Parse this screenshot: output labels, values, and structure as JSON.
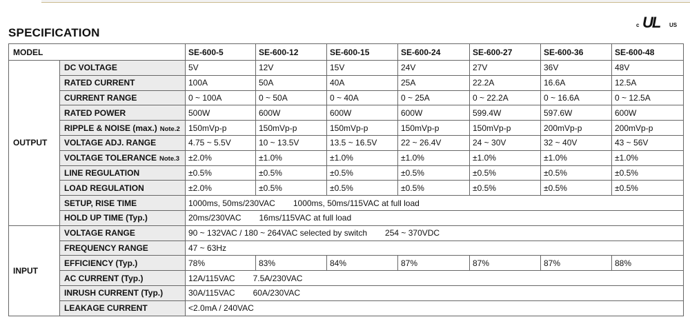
{
  "header": {
    "title": "SPECIFICATION",
    "cert_mark": {
      "prefix": "c",
      "symbol": "UL",
      "suffix": "us"
    }
  },
  "table": {
    "model_label": "MODEL",
    "models": [
      "SE-600-5",
      "SE-600-12",
      "SE-600-15",
      "SE-600-24",
      "SE-600-27",
      "SE-600-36",
      "SE-600-48"
    ],
    "sections": [
      {
        "name": "OUTPUT",
        "rows": [
          {
            "label": "DC VOLTAGE",
            "values": [
              "5V",
              "12V",
              "15V",
              "24V",
              "27V",
              "36V",
              "48V"
            ]
          },
          {
            "label": "RATED CURRENT",
            "values": [
              "100A",
              "50A",
              "40A",
              "25A",
              "22.2A",
              "16.6A",
              "12.5A"
            ]
          },
          {
            "label": "CURRENT RANGE",
            "values": [
              "0 ~ 100A",
              "0 ~ 50A",
              "0 ~ 40A",
              "0 ~ 25A",
              "0 ~ 22.2A",
              "0 ~ 16.6A",
              "0 ~ 12.5A"
            ]
          },
          {
            "label": "RATED POWER",
            "values": [
              "500W",
              "600W",
              "600W",
              "600W",
              "599.4W",
              "597.6W",
              "600W"
            ]
          },
          {
            "label": "RIPPLE & NOISE (max.)",
            "note": "Note.2",
            "values": [
              "150mVp-p",
              "150mVp-p",
              "150mVp-p",
              "150mVp-p",
              "150mVp-p",
              "200mVp-p",
              "200mVp-p"
            ]
          },
          {
            "label": "VOLTAGE ADJ. RANGE",
            "values": [
              "4.75 ~ 5.5V",
              "10 ~ 13.5V",
              "13.5 ~ 16.5V",
              "22 ~ 26.4V",
              "24 ~ 30V",
              "32 ~ 40V",
              "43 ~ 56V"
            ]
          },
          {
            "label": "VOLTAGE TOLERANCE",
            "note": "Note.3",
            "values": [
              "±2.0%",
              "±1.0%",
              "±1.0%",
              "±1.0%",
              "±1.0%",
              "±1.0%",
              "±1.0%"
            ]
          },
          {
            "label": "LINE REGULATION",
            "values": [
              "±0.5%",
              "±0.5%",
              "±0.5%",
              "±0.5%",
              "±0.5%",
              "±0.5%",
              "±0.5%"
            ]
          },
          {
            "label": "LOAD REGULATION",
            "values": [
              "±2.0%",
              "±0.5%",
              "±0.5%",
              "±0.5%",
              "±0.5%",
              "±0.5%",
              "±0.5%"
            ]
          },
          {
            "label": "SETUP, RISE TIME",
            "spans": [
              "1000ms, 50ms/230VAC",
              "1000ms, 50ms/115VAC at full load"
            ]
          },
          {
            "label": "HOLD UP TIME (Typ.)",
            "spans": [
              "20ms/230VAC",
              "16ms/115VAC at full load"
            ]
          }
        ]
      },
      {
        "name": "INPUT",
        "rows": [
          {
            "label": "VOLTAGE RANGE",
            "spans": [
              "90 ~ 132VAC / 180 ~ 264VAC selected by switch",
              "254 ~ 370VDC"
            ]
          },
          {
            "label": "FREQUENCY RANGE",
            "spans": [
              "47 ~ 63Hz"
            ]
          },
          {
            "label": "EFFICIENCY (Typ.)",
            "values": [
              "78%",
              "83%",
              "84%",
              "87%",
              "87%",
              "87%",
              "88%"
            ]
          },
          {
            "label": "AC CURRENT (Typ.)",
            "spans": [
              "12A/115VAC",
              "7.5A/230VAC"
            ]
          },
          {
            "label": "INRUSH CURRENT (Typ.)",
            "spans": [
              "30A/115VAC",
              "60A/230VAC"
            ]
          },
          {
            "label": "LEAKAGE CURRENT",
            "spans": [
              "<2.0mA / 240VAC"
            ]
          }
        ]
      }
    ]
  }
}
